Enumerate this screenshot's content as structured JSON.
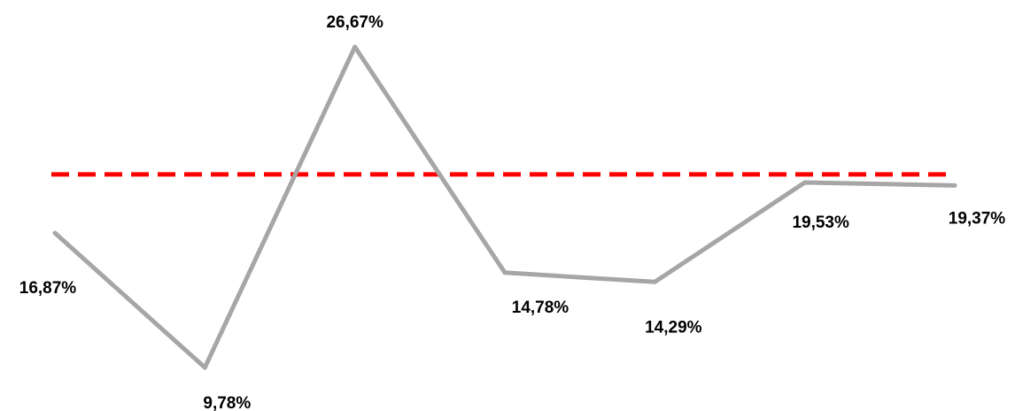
{
  "chart_data": {
    "type": "line",
    "title": "",
    "xlabel": "",
    "ylabel": "",
    "grid": false,
    "legend": "none",
    "x": [
      1,
      2,
      3,
      4,
      5,
      6,
      7
    ],
    "series": [
      {
        "values": [
          16.87,
          9.78,
          26.67,
          14.78,
          14.29,
          19.53,
          19.37
        ],
        "labels": [
          "16,87%",
          "9,78%",
          "26,67%",
          "14,78%",
          "14,29%",
          "19,53%",
          "19,37%"
        ],
        "color": "#a6a6a6"
      }
    ],
    "reference_line": {
      "value": 20.0,
      "color": "#ff0000",
      "style": "dashed"
    },
    "ylim": [
      8,
      28
    ]
  }
}
